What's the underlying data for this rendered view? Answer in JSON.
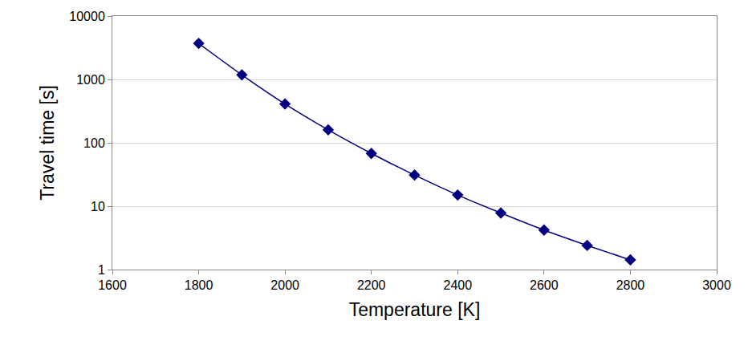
{
  "chart_data": {
    "type": "line",
    "x_label": "Temperature [K]",
    "y_label": "Travel time [s]",
    "x": [
      1800,
      1900,
      2000,
      2100,
      2200,
      2300,
      2400,
      2500,
      2600,
      2700,
      2800
    ],
    "values": [
      3700,
      1180,
      410,
      160,
      68,
      31,
      15,
      7.8,
      4.2,
      2.4,
      1.42
    ],
    "color": "#000080",
    "marker": "diamond",
    "line_style": "solid",
    "log": "y",
    "grid": true,
    "xlim": [
      1600,
      3000
    ],
    "xticks": [
      1600,
      1800,
      2000,
      2200,
      2400,
      2600,
      2800,
      3000
    ],
    "ylim": [
      1,
      10000
    ],
    "yticks": [
      1,
      10,
      100,
      1000,
      10000
    ]
  }
}
